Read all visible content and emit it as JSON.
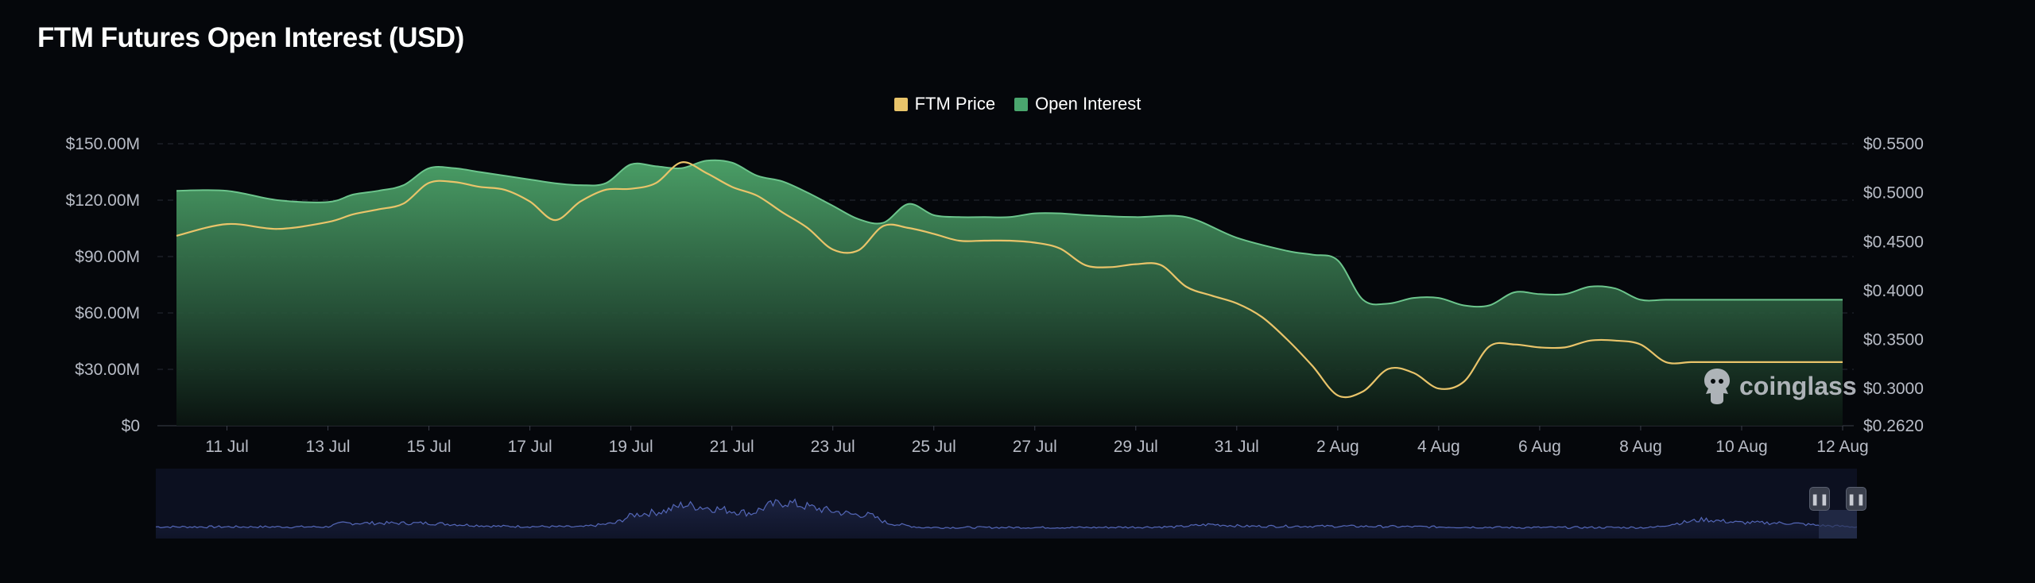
{
  "header": {
    "title": "FTM Futures Open Interest (USD)"
  },
  "legend": {
    "items": [
      {
        "label": "FTM Price",
        "color": "#e9c46a"
      },
      {
        "label": "Open Interest",
        "color": "#4aa66e"
      }
    ]
  },
  "watermark": {
    "text": "coinglass"
  },
  "navigator": {
    "start_handle_icon": "pause-icon",
    "end_handle_icon": "pause-icon"
  },
  "chart_data": {
    "type": "area",
    "x_tick_labels": [
      "11 Jul",
      "13 Jul",
      "15 Jul",
      "17 Jul",
      "19 Jul",
      "21 Jul",
      "23 Jul",
      "25 Jul",
      "27 Jul",
      "29 Jul",
      "31 Jul",
      "2 Aug",
      "4 Aug",
      "6 Aug",
      "8 Aug",
      "10 Aug",
      "12 Aug"
    ],
    "y_left_ticks": [
      "$0",
      "$30.00M",
      "$60.00M",
      "$90.00M",
      "$120.00M",
      "$150.00M"
    ],
    "y_left_range": [
      0,
      150
    ],
    "y_left_unit": "USD millions",
    "y_right_ticks": [
      "$0.2620",
      "$0.3000",
      "$0.3500",
      "$0.4000",
      "$0.4500",
      "$0.5000",
      "$0.5500"
    ],
    "y_right_range": [
      0.262,
      0.55
    ],
    "grid": "horizontal dashed",
    "legend_position": "top-center",
    "series": [
      {
        "name": "Open Interest",
        "axis": "left",
        "type": "area",
        "color": "#4aa66e",
        "x": [
          10,
          11,
          12,
          13,
          13.5,
          14,
          14.5,
          15,
          15.5,
          16,
          16.5,
          17,
          17.5,
          18,
          18.5,
          19,
          19.5,
          20,
          20.5,
          21,
          21.5,
          22,
          22.5,
          23,
          23.5,
          24,
          24.5,
          25,
          25.5,
          26,
          26.5,
          27,
          27.5,
          28,
          29,
          30,
          31,
          32,
          32.5,
          33,
          33.5,
          34,
          34.5,
          35,
          35.5,
          36,
          36.5,
          37,
          37.5,
          38,
          38.5,
          39,
          39.5,
          40,
          40.5,
          41,
          41.5,
          42,
          42.5,
          43
        ],
        "values": [
          125,
          125,
          120,
          119,
          123,
          125,
          128,
          137,
          137,
          135,
          133,
          131,
          129,
          128,
          129,
          139,
          138,
          137,
          141,
          140,
          133,
          130,
          124,
          117,
          110,
          108,
          118,
          112,
          111,
          111,
          111,
          113,
          113,
          112,
          111,
          111,
          100,
          93,
          91,
          88,
          67,
          65,
          68,
          68,
          64,
          64,
          71,
          70,
          70,
          74,
          73,
          67,
          67,
          67,
          67,
          67,
          67,
          67,
          67,
          67
        ]
      },
      {
        "name": "FTM Price",
        "axis": "right",
        "type": "line",
        "color": "#e9c46a",
        "x": [
          10,
          11,
          12,
          13,
          13.5,
          14,
          14.5,
          15,
          15.5,
          16,
          16.5,
          17,
          17.5,
          18,
          18.5,
          19,
          19.5,
          20,
          20.5,
          21,
          21.5,
          22,
          22.5,
          23,
          23.5,
          24,
          24.5,
          25,
          25.5,
          26,
          26.5,
          27,
          27.5,
          28,
          28.5,
          29,
          29.5,
          30,
          30.5,
          31,
          31.5,
          32,
          32.5,
          33,
          33.5,
          34,
          34.5,
          35,
          35.5,
          36,
          36.5,
          37,
          37.5,
          38,
          38.5,
          39,
          39.5,
          40,
          40.5,
          41,
          41.5,
          42,
          42.5,
          43
        ],
        "values": [
          0.456,
          0.468,
          0.463,
          0.47,
          0.478,
          0.483,
          0.489,
          0.51,
          0.511,
          0.506,
          0.503,
          0.491,
          0.472,
          0.491,
          0.503,
          0.504,
          0.51,
          0.531,
          0.52,
          0.506,
          0.497,
          0.48,
          0.464,
          0.442,
          0.441,
          0.466,
          0.464,
          0.458,
          0.451,
          0.451,
          0.451,
          0.449,
          0.443,
          0.426,
          0.424,
          0.427,
          0.426,
          0.404,
          0.395,
          0.387,
          0.373,
          0.35,
          0.323,
          0.293,
          0.297,
          0.32,
          0.316,
          0.3,
          0.307,
          0.343,
          0.345,
          0.342,
          0.342,
          0.349,
          0.349,
          0.345,
          0.327,
          0.327,
          0.327,
          0.327,
          0.327,
          0.327,
          0.327,
          0.327
        ]
      }
    ]
  }
}
